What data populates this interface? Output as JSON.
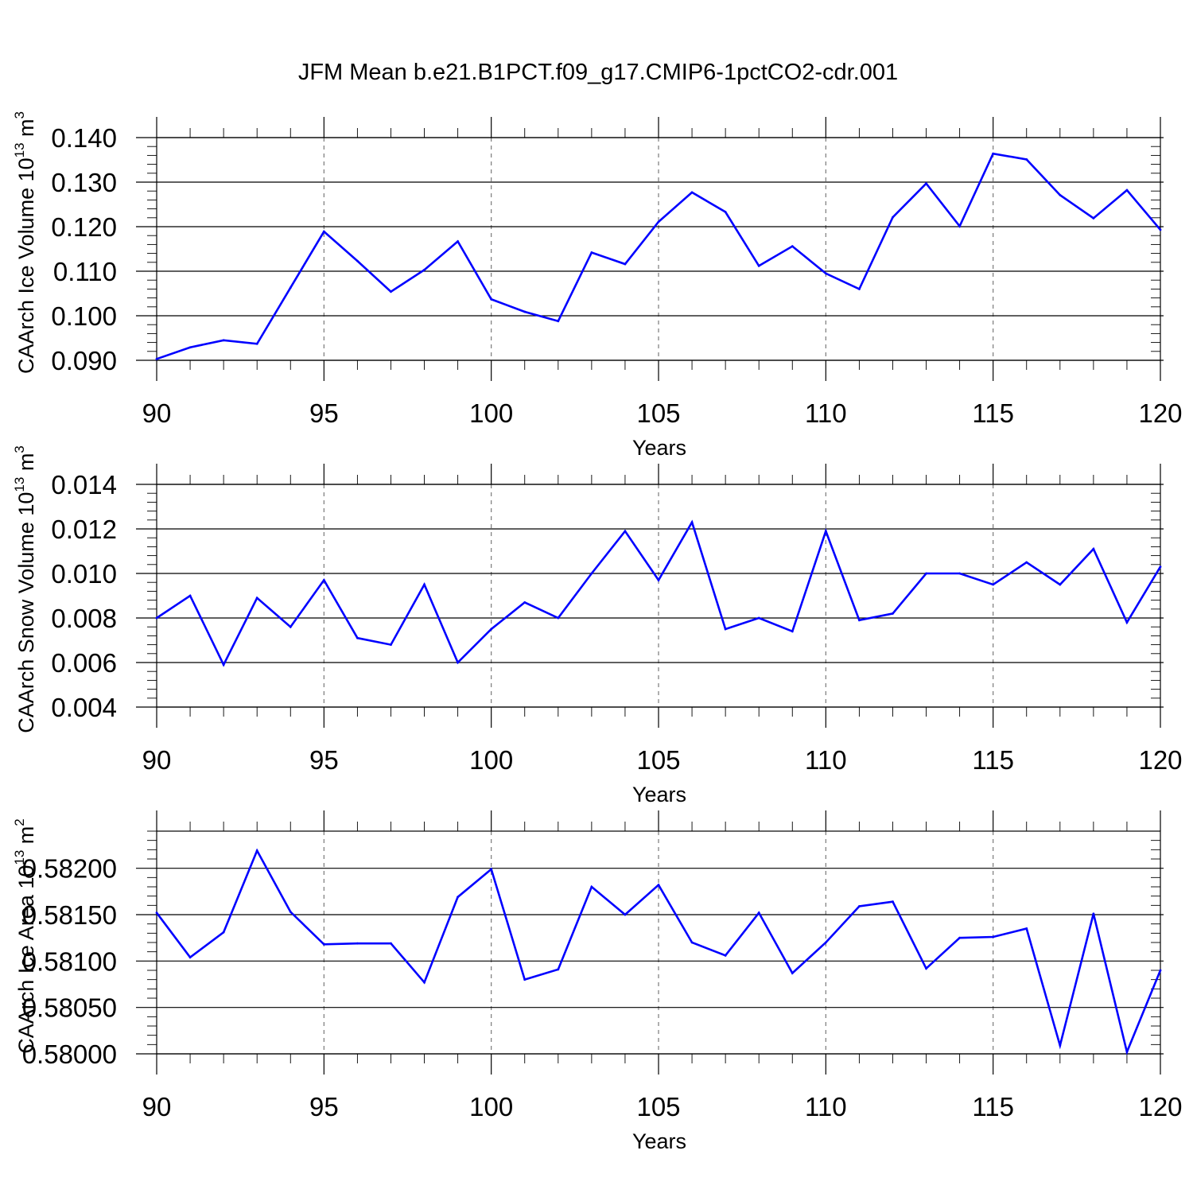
{
  "title": "JFM Mean b.e21.B1PCT.f09_g17.CMIP6-1pctCO2-cdr.001",
  "colors": {
    "line": "#0000ff",
    "axis": "#000000",
    "grid": "#7a7a7a",
    "background": "#ffffff"
  },
  "chart_data": [
    {
      "type": "line",
      "ylabel": "CAArch Ice Volume 10",
      "ylabel_exp": "13",
      "ylabel_unit": " m",
      "ylabel_unit_exp": "3",
      "xlabel": "Years",
      "xlim": [
        90,
        120
      ],
      "ylim": [
        0.09,
        0.14
      ],
      "xticks": [
        90,
        95,
        100,
        105,
        110,
        115,
        120
      ],
      "xtick_labels": [
        "90",
        "95",
        "100",
        "105",
        "110",
        "115",
        "120"
      ],
      "yticks": [
        0.09,
        0.1,
        0.11,
        0.12,
        0.13,
        0.14
      ],
      "ytick_labels": [
        "0.090",
        "0.100",
        "0.110",
        "0.120",
        "0.130",
        "0.140"
      ],
      "x": [
        90,
        91,
        92,
        93,
        94,
        95,
        96,
        97,
        98,
        99,
        100,
        101,
        102,
        103,
        104,
        105,
        106,
        107,
        108,
        109,
        110,
        111,
        112,
        113,
        114,
        115,
        116,
        117,
        118,
        119,
        120
      ],
      "series": [
        {
          "name": "CAArch Ice Volume",
          "values": [
            0.0903,
            0.0929,
            0.0945,
            0.0937,
            0.1063,
            0.1189,
            0.1123,
            0.1054,
            0.1103,
            0.1167,
            0.1037,
            0.1009,
            0.0988,
            0.1142,
            0.1116,
            0.1211,
            0.1277,
            0.1233,
            0.1112,
            0.1156,
            0.1095,
            0.106,
            0.1221,
            0.1297,
            0.1201,
            0.1364,
            0.1351,
            0.1271,
            0.1219,
            0.1282,
            0.1193
          ]
        }
      ]
    },
    {
      "type": "line",
      "ylabel": "CAArch Snow Volume 10",
      "ylabel_exp": "13",
      "ylabel_unit": " m",
      "ylabel_unit_exp": "3",
      "xlabel": "Years",
      "xlim": [
        90,
        120
      ],
      "ylim": [
        0.004,
        0.014
      ],
      "xticks": [
        90,
        95,
        100,
        105,
        110,
        115,
        120
      ],
      "xtick_labels": [
        "90",
        "95",
        "100",
        "105",
        "110",
        "115",
        "120"
      ],
      "yticks": [
        0.004,
        0.006,
        0.008,
        0.01,
        0.012,
        0.014
      ],
      "ytick_labels": [
        "0.004",
        "0.006",
        "0.008",
        "0.010",
        "0.012",
        "0.014"
      ],
      "x": [
        90,
        91,
        92,
        93,
        94,
        95,
        96,
        97,
        98,
        99,
        100,
        101,
        102,
        103,
        104,
        105,
        106,
        107,
        108,
        109,
        110,
        111,
        112,
        113,
        114,
        115,
        116,
        117,
        118,
        119,
        120
      ],
      "series": [
        {
          "name": "CAArch Snow Volume",
          "values": [
            0.008,
            0.009,
            0.0059,
            0.0089,
            0.0076,
            0.0097,
            0.0071,
            0.0068,
            0.0095,
            0.006,
            0.0075,
            0.0087,
            0.008,
            0.01,
            0.0119,
            0.0097,
            0.0123,
            0.0075,
            0.008,
            0.0074,
            0.0119,
            0.0079,
            0.0082,
            0.01,
            0.01,
            0.0095,
            0.0105,
            0.0095,
            0.0111,
            0.0078,
            0.0103
          ]
        }
      ]
    },
    {
      "type": "line",
      "ylabel": "CAArch Ice Area 10",
      "ylabel_exp": "13",
      "ylabel_unit": " m",
      "ylabel_unit_exp": "2",
      "xlabel": "Years",
      "xlim": [
        90,
        120
      ],
      "ylim": [
        0.58,
        0.5824
      ],
      "xticks": [
        90,
        95,
        100,
        105,
        110,
        115,
        120
      ],
      "xtick_labels": [
        "90",
        "95",
        "100",
        "105",
        "110",
        "115",
        "120"
      ],
      "yticks": [
        0.58,
        0.5805,
        0.581,
        0.5815,
        0.582
      ],
      "ytick_labels": [
        "0.58000",
        "0.58050",
        "0.58100",
        "0.58150",
        "0.58200"
      ],
      "x": [
        90,
        91,
        92,
        93,
        94,
        95,
        96,
        97,
        98,
        99,
        100,
        101,
        102,
        103,
        104,
        105,
        106,
        107,
        108,
        109,
        110,
        111,
        112,
        113,
        114,
        115,
        116,
        117,
        118,
        119,
        120
      ],
      "series": [
        {
          "name": "CAArch Ice Area",
          "values": [
            0.58152,
            0.58104,
            0.58131,
            0.58219,
            0.58153,
            0.58118,
            0.58119,
            0.58119,
            0.58077,
            0.58169,
            0.58199,
            0.5808,
            0.58091,
            0.5818,
            0.5815,
            0.58182,
            0.5812,
            0.58106,
            0.58152,
            0.58087,
            0.5812,
            0.58159,
            0.58164,
            0.58092,
            0.58125,
            0.58126,
            0.58135,
            0.58009,
            0.58151,
            0.58002,
            0.5809
          ]
        }
      ]
    }
  ]
}
